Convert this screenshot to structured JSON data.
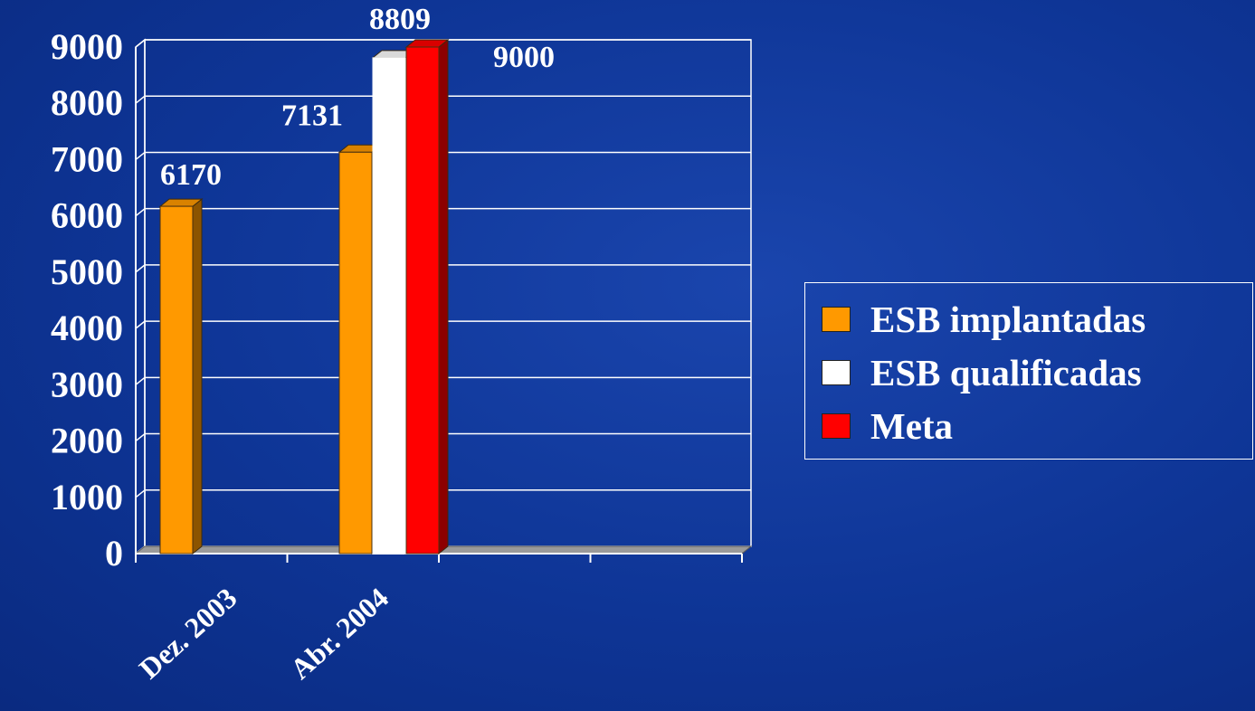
{
  "chart_data": {
    "type": "bar",
    "title": "",
    "xlabel": "",
    "ylabel": "",
    "ylim": [
      0,
      9000
    ],
    "yticks": [
      "0",
      "1000",
      "2000",
      "3000",
      "4000",
      "5000",
      "6000",
      "7000",
      "8000",
      "9000"
    ],
    "categories": [
      "Dez. 2003",
      "Abr. 2004"
    ],
    "series": [
      {
        "name": "ESB implantadas",
        "color": "#ff9900",
        "values": [
          6170,
          7131
        ]
      },
      {
        "name": "ESB qualificadas",
        "color": "#ffffff",
        "values": [
          null,
          8809
        ]
      },
      {
        "name": "Meta",
        "color": "#ff0000",
        "values": [
          null,
          9000
        ]
      }
    ],
    "data_labels": [
      "6170",
      "7131",
      "8809",
      "9000"
    ],
    "grid": true,
    "legend_position": "right"
  },
  "legend": {
    "items": [
      {
        "label": "ESB implantadas",
        "color": "#ff9900"
      },
      {
        "label": "ESB qualificadas",
        "color": "#ffffff"
      },
      {
        "label": "Meta",
        "color": "#ff0000"
      }
    ]
  }
}
